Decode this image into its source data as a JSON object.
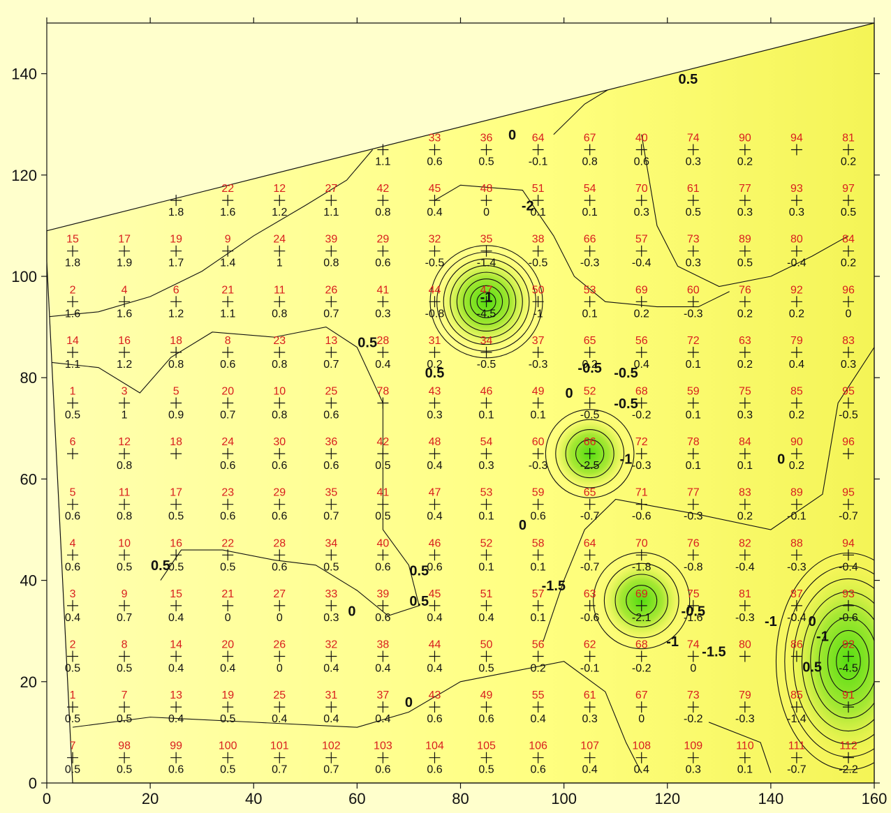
{
  "chart_data": {
    "type": "contour",
    "title": "",
    "xlabel": "",
    "ylabel": "",
    "xlim": [
      0,
      160
    ],
    "ylim": [
      0,
      150
    ],
    "x_ticks": [
      0,
      20,
      40,
      60,
      80,
      100,
      120,
      140,
      160
    ],
    "y_ticks": [
      0,
      20,
      40,
      60,
      80,
      100,
      120,
      140
    ],
    "x_tick_labels": [
      "0",
      "20",
      "40",
      "60",
      "80",
      "100",
      "120",
      "140",
      "160"
    ],
    "y_tick_labels": [
      "0",
      "20",
      "40",
      "60",
      "80",
      "100",
      "120",
      "140"
    ],
    "x_columns": [
      5,
      15,
      25,
      35,
      45,
      55,
      65,
      75,
      85,
      95,
      105,
      115,
      125,
      135,
      145,
      155
    ],
    "colors": {
      "background": "#ffffcc",
      "fill_high": "#ffff99",
      "fill_low": "#66dd22",
      "contour": "#111111",
      "point_id": "#d81e1e"
    },
    "rows": [
      {
        "y": 125,
        "ids": [
          "",
          "",
          "",
          "",
          "",
          "",
          "",
          "33",
          "36",
          "64",
          "67",
          "40",
          "74",
          "90",
          "94",
          "81"
        ],
        "values": [
          "",
          "",
          "",
          "",
          "",
          "",
          "1.1",
          "0.6",
          "0.5",
          "-0.1",
          "0.8",
          "0.6",
          "0.3",
          "0.2",
          "",
          "0.2"
        ]
      },
      {
        "y": 115,
        "ids": [
          "",
          "",
          "",
          "22",
          "12",
          "27",
          "42",
          "45",
          "48",
          "51",
          "54",
          "70",
          "61",
          "77",
          "93",
          "97"
        ],
        "values": [
          "",
          "",
          "1.8",
          "1.6",
          "1.2",
          "1.1",
          "0.8",
          "0.4",
          "0",
          "0.1",
          "0.1",
          "0.3",
          "0.5",
          "0.3",
          "0.3",
          "0.5"
        ]
      },
      {
        "y": 105,
        "ids": [
          "15",
          "17",
          "19",
          "9",
          "24",
          "39",
          "29",
          "32",
          "35",
          "38",
          "66",
          "57",
          "73",
          "89",
          "80",
          "84"
        ],
        "values": [
          "1.8",
          "1.9",
          "1.7",
          "1.4",
          "1",
          "0.8",
          "0.6",
          "-0.5",
          "-1.4",
          "-0.5",
          "-0.3",
          "-0.4",
          "0.3",
          "0.5",
          "-0.4",
          "0.2"
        ]
      },
      {
        "y": 95,
        "ids": [
          "2",
          "4",
          "6",
          "21",
          "11",
          "26",
          "41",
          "44",
          "47",
          "50",
          "53",
          "69",
          "60",
          "76",
          "92",
          "96"
        ],
        "values": [
          "1.6",
          "1.6",
          "1.2",
          "1.1",
          "0.8",
          "0.7",
          "0.3",
          "-0.8",
          "-4.5",
          "-1",
          "0.1",
          "0.2",
          "-0.3",
          "0.2",
          "0.2",
          "0"
        ]
      },
      {
        "y": 85,
        "ids": [
          "14",
          "16",
          "18",
          "8",
          "23",
          "13",
          "28",
          "31",
          "34",
          "37",
          "65",
          "56",
          "72",
          "63",
          "79",
          "83"
        ],
        "values": [
          "1.1",
          "1.2",
          "0.8",
          "0.6",
          "0.8",
          "0.7",
          "0.4",
          "0.2",
          "-0.5",
          "-0.3",
          "0.2",
          "0.4",
          "0.1",
          "0.2",
          "0.4",
          "0.3"
        ]
      },
      {
        "y": 75,
        "ids": [
          "1",
          "3",
          "5",
          "20",
          "10",
          "25",
          "78",
          "43",
          "46",
          "49",
          "52",
          "68",
          "59",
          "75",
          "85",
          "95"
        ],
        "values": [
          "0.5",
          "1",
          "0.9",
          "0.7",
          "0.8",
          "0.6",
          "",
          "0.3",
          "0.1",
          "0.1",
          "-0.5",
          "-0.2",
          "0.1",
          "0.3",
          "0.2",
          "-0.5"
        ]
      },
      {
        "y": 65,
        "ids": [
          "6",
          "12",
          "18",
          "24",
          "30",
          "36",
          "42",
          "48",
          "54",
          "60",
          "66",
          "72",
          "78",
          "84",
          "90",
          "96"
        ],
        "values": [
          "",
          "0.8",
          "",
          "0.6",
          "0.6",
          "0.6",
          "0.5",
          "0.4",
          "0.3",
          "-0.3",
          "-2.5",
          "-0.3",
          "0.1",
          "0.1",
          "0.2",
          ""
        ]
      },
      {
        "y": 55,
        "ids": [
          "5",
          "11",
          "17",
          "23",
          "29",
          "35",
          "41",
          "47",
          "53",
          "59",
          "65",
          "71",
          "77",
          "83",
          "89",
          "95"
        ],
        "values": [
          "0.6",
          "0.8",
          "0.5",
          "0.6",
          "0.6",
          "0.7",
          "0.5",
          "0.4",
          "0.1",
          "0.6",
          "-0.7",
          "-0.6",
          "-0.3",
          "0.2",
          "-0.1",
          "-0.7"
        ]
      },
      {
        "y": 45,
        "ids": [
          "4",
          "10",
          "16",
          "22",
          "28",
          "34",
          "40",
          "46",
          "52",
          "58",
          "64",
          "70",
          "76",
          "82",
          "88",
          "94"
        ],
        "values": [
          "0.6",
          "0.5",
          "0.5",
          "0.5",
          "0.6",
          "0.5",
          "0.6",
          "0.6",
          "0.1",
          "0.1",
          "-0.7",
          "-1.8",
          "-0.8",
          "-0.4",
          "-0.3",
          "-0.4"
        ]
      },
      {
        "y": 35,
        "ids": [
          "3",
          "9",
          "15",
          "21",
          "27",
          "33",
          "39",
          "45",
          "51",
          "57",
          "63",
          "69",
          "75",
          "81",
          "87",
          "93"
        ],
        "values": [
          "0.4",
          "0.7",
          "0.4",
          "0",
          "0",
          "0.3",
          "0.6",
          "0.4",
          "0.4",
          "0.1",
          "-0.6",
          "-2.1",
          "-1.6",
          "-0.3",
          "-0.4",
          "-0.6"
        ]
      },
      {
        "y": 25,
        "ids": [
          "2",
          "8",
          "14",
          "20",
          "26",
          "32",
          "38",
          "44",
          "50",
          "56",
          "62",
          "68",
          "74",
          "80",
          "86",
          "92"
        ],
        "values": [
          "0.5",
          "0.5",
          "0.4",
          "0.4",
          "0",
          "0.4",
          "0.4",
          "0.4",
          "0.5",
          "0.2",
          "-0.1",
          "-0.2",
          "0",
          "",
          "",
          "-4.5"
        ]
      },
      {
        "y": 15,
        "ids": [
          "1",
          "7",
          "13",
          "19",
          "25",
          "31",
          "37",
          "43",
          "49",
          "55",
          "61",
          "67",
          "73",
          "79",
          "85",
          "91"
        ],
        "values": [
          "0.5",
          "0.5",
          "0.4",
          "0.5",
          "0.4",
          "0.4",
          "0.4",
          "0.6",
          "0.6",
          "0.4",
          "0.3",
          "0",
          "-0.2",
          "-0.3",
          "-1.4",
          ""
        ]
      },
      {
        "y": 5,
        "ids": [
          "7",
          "98",
          "99",
          "100",
          "101",
          "102",
          "103",
          "104",
          "105",
          "106",
          "107",
          "108",
          "109",
          "110",
          "111",
          "112"
        ],
        "values": [
          "0.5",
          "0.5",
          "0.6",
          "0.5",
          "0.7",
          "0.7",
          "0.6",
          "0.6",
          "0.5",
          "0.6",
          "0.4",
          "0.4",
          "0.3",
          "0.1",
          "-0.7",
          "-2.2"
        ]
      }
    ],
    "contour_labels": [
      "0.5",
      "0",
      "-2",
      "-1",
      "-0.5",
      "0.5",
      "0",
      "-0.5",
      "-1",
      "0",
      "0.5",
      "-1.5",
      "-0.5",
      "-1",
      "-1.5",
      "0.5",
      "0.5",
      "0",
      "-0.5",
      "-1",
      "0",
      "0",
      "-1",
      "0.5",
      "0",
      "0.5"
    ],
    "lows": [
      {
        "x": 85,
        "y": 95,
        "value": -4.5,
        "levels": [
          -0.5,
          -1,
          -1.5,
          -2,
          -2.5,
          -3,
          -3.5,
          -4
        ]
      },
      {
        "x": 105,
        "y": 65,
        "value": -2.5,
        "levels": [
          -0.5,
          -1,
          -1.5,
          -2
        ]
      },
      {
        "x": 115,
        "y": 36,
        "value": -2.1,
        "levels": [
          -0.5,
          -1,
          -1.5,
          -2
        ]
      },
      {
        "x": 155,
        "y": 24,
        "value": -4.5,
        "levels": [
          -0.5,
          -1,
          -1.5,
          -2,
          -2.5,
          -3,
          -3.5,
          -4
        ]
      }
    ]
  }
}
